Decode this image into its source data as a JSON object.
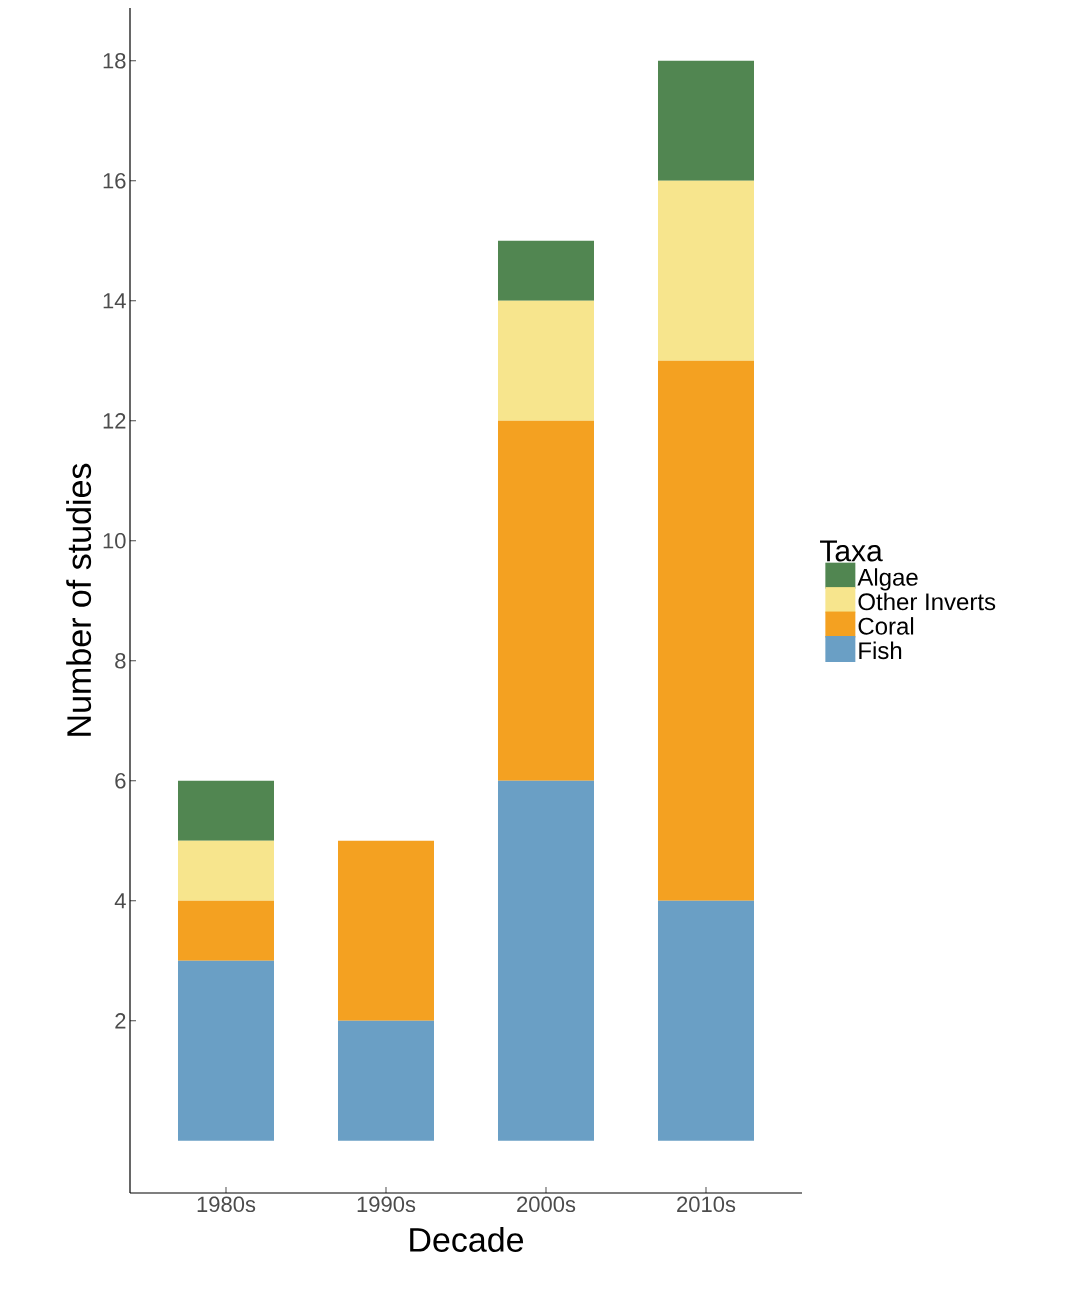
{
  "chart_data": {
    "type": "bar",
    "stacked": true,
    "xlabel": "Decade",
    "ylabel": "Number of studies",
    "legend_title": "Taxa",
    "legend": "right",
    "categories": [
      "1980s",
      "1990s",
      "2000s",
      "2010s"
    ],
    "series": [
      {
        "name": "Fish",
        "color": "#6a9fc5",
        "values": [
          3,
          2,
          6,
          4
        ]
      },
      {
        "name": "Coral",
        "color": "#f4a121",
        "values": [
          1,
          3,
          6,
          9
        ]
      },
      {
        "name": "Other Inverts",
        "color": "#f7e58d",
        "values": [
          1,
          0,
          2,
          3
        ]
      },
      {
        "name": "Algae",
        "color": "#518651",
        "values": [
          1,
          0,
          1,
          2
        ]
      }
    ],
    "ylim": [
      -0.87,
      18.88
    ],
    "yticks": [
      2,
      4,
      6,
      8,
      10,
      12,
      14,
      16,
      18
    ],
    "grid": false
  }
}
